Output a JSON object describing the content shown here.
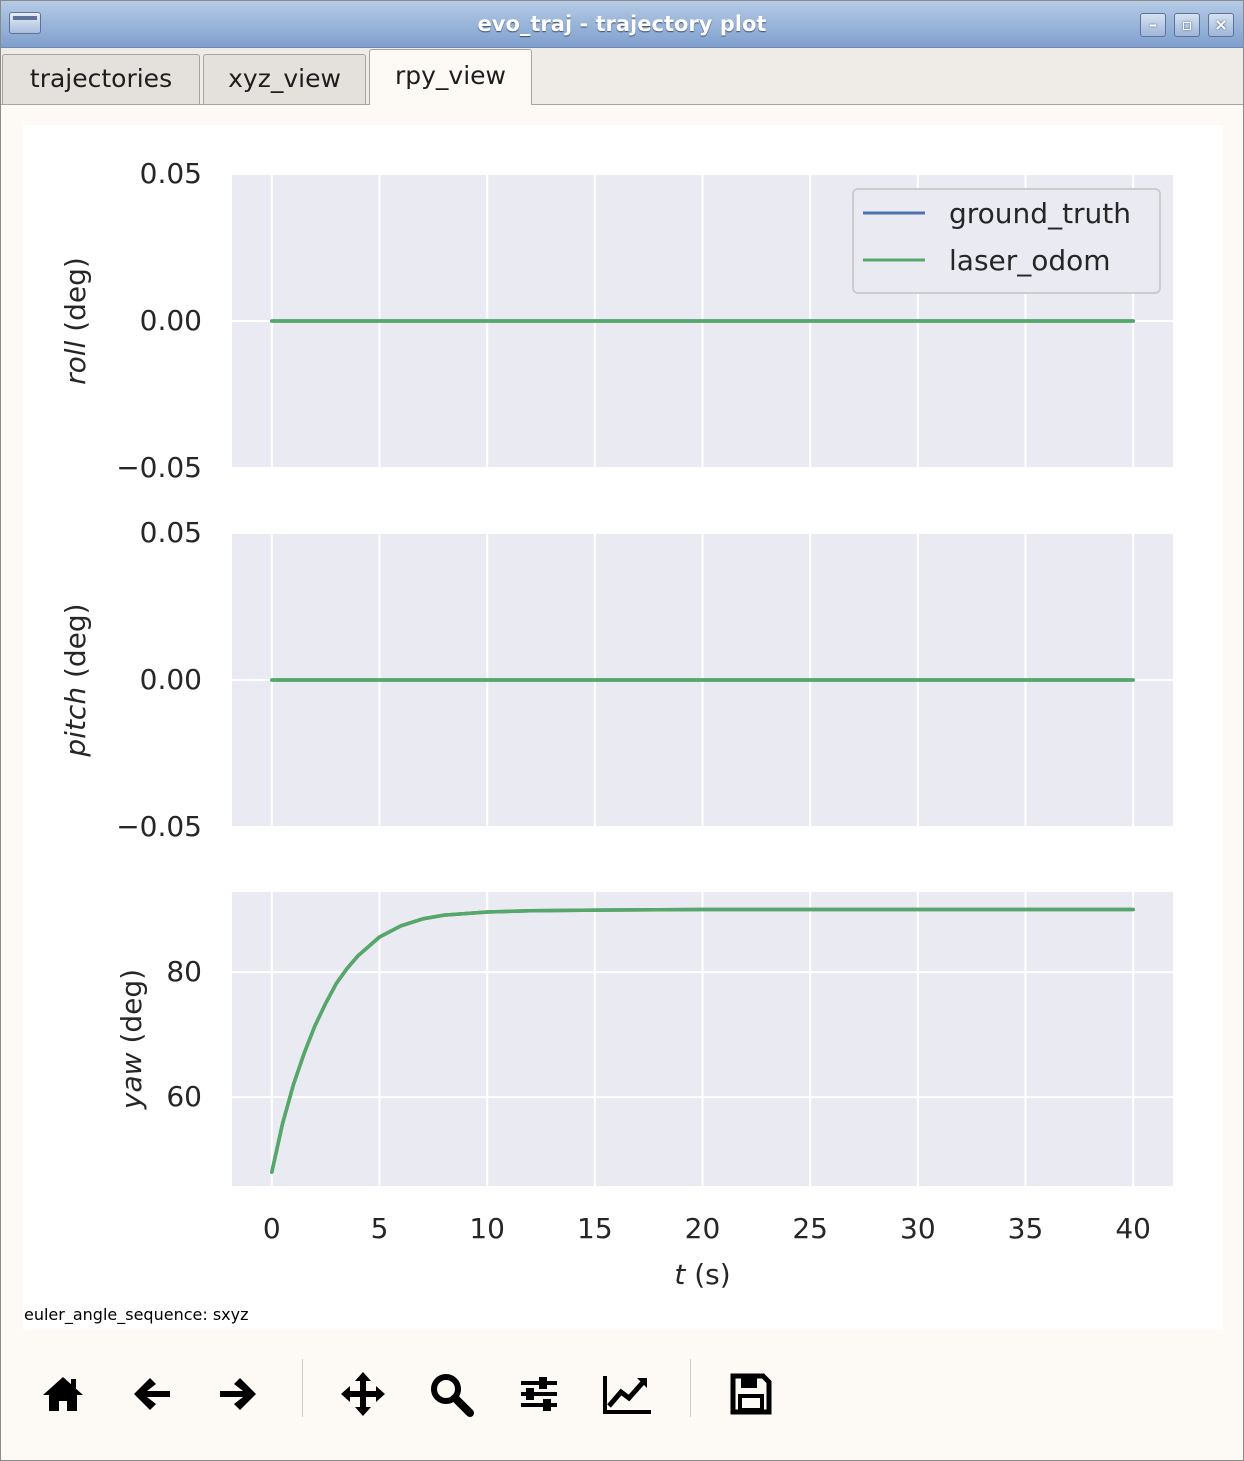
{
  "window": {
    "title": "evo_traj - trajectory plot"
  },
  "window_buttons": [
    "minimize",
    "maximize",
    "close"
  ],
  "tabs": [
    {
      "label": "trajectories",
      "active": false
    },
    {
      "label": "xyz_view",
      "active": false
    },
    {
      "label": "rpy_view",
      "active": true
    }
  ],
  "status_text": "euler_angle_sequence: sxyz",
  "toolbar": {
    "buttons": [
      {
        "name": "home-icon",
        "action": "home"
      },
      {
        "name": "arrow-left-icon",
        "action": "back"
      },
      {
        "name": "arrow-right-icon",
        "action": "forward"
      },
      {
        "name": "move-icon",
        "action": "pan"
      },
      {
        "name": "zoom-icon",
        "action": "zoom"
      },
      {
        "name": "sliders-icon",
        "action": "configure subplots"
      },
      {
        "name": "line-chart-icon",
        "action": "edit axis"
      },
      {
        "name": "save-icon",
        "action": "save"
      }
    ]
  },
  "colors": {
    "ground_truth": "#4c72b0",
    "laser_odom": "#55a868",
    "axes_bg": "#eaeaf2",
    "grid": "#ffffff"
  },
  "chart_data": [
    {
      "type": "line",
      "ylabel_var": "roll",
      "ylabel_unit": "(deg)",
      "ylim": [
        -0.05,
        0.05
      ],
      "yticks": [
        "0.05",
        "0.00",
        "−0.05"
      ],
      "ytick_values": [
        0.05,
        0.0,
        -0.05
      ],
      "xlim": [
        -1.85,
        41.85
      ],
      "legend": {
        "placement": "top-right",
        "entries": [
          "ground_truth",
          "laser_odom"
        ]
      },
      "grid": true,
      "series": [
        {
          "name": "ground_truth",
          "color": "#4c72b0",
          "x": [
            0,
            40
          ],
          "y": [
            0.0,
            0.0
          ]
        },
        {
          "name": "laser_odom",
          "color": "#55a868",
          "x": [
            0,
            40
          ],
          "y": [
            0.0,
            0.0
          ]
        }
      ]
    },
    {
      "type": "line",
      "ylabel_var": "pitch",
      "ylabel_unit": "(deg)",
      "ylim": [
        -0.05,
        0.05
      ],
      "yticks": [
        "0.05",
        "0.00",
        "−0.05"
      ],
      "ytick_values": [
        0.05,
        0.0,
        -0.05
      ],
      "xlim": [
        -1.85,
        41.85
      ],
      "grid": true,
      "series": [
        {
          "name": "ground_truth",
          "color": "#4c72b0",
          "x": [
            0,
            40
          ],
          "y": [
            0.0,
            0.0
          ]
        },
        {
          "name": "laser_odom",
          "color": "#55a868",
          "x": [
            0,
            40
          ],
          "y": [
            0.0,
            0.0
          ]
        }
      ]
    },
    {
      "type": "line",
      "ylabel_var": "yaw",
      "ylabel_unit": "(deg)",
      "ylim": [
        45.8,
        92.8
      ],
      "yticks": [
        "80",
        "60"
      ],
      "ytick_values": [
        80,
        60
      ],
      "xlim": [
        -1.85,
        41.85
      ],
      "xticks": [
        "0",
        "5",
        "10",
        "15",
        "20",
        "25",
        "30",
        "35",
        "40"
      ],
      "xtick_values": [
        0,
        5,
        10,
        15,
        20,
        25,
        30,
        35,
        40
      ],
      "xlabel_var": "t",
      "xlabel_unit": "(s)",
      "grid": true,
      "series": [
        {
          "name": "ground_truth",
          "color": "#4c72b0",
          "x": [
            0,
            0.5,
            1,
            1.5,
            2,
            2.5,
            3,
            3.5,
            4,
            5,
            6,
            7,
            8,
            10,
            12,
            15,
            20,
            25,
            30,
            35,
            40
          ],
          "y": [
            48.0,
            55.8,
            62.0,
            67.0,
            71.4,
            75.0,
            78.2,
            80.6,
            82.6,
            85.6,
            87.4,
            88.5,
            89.1,
            89.6,
            89.8,
            89.9,
            90.0,
            90.0,
            90.0,
            90.0,
            90.0
          ]
        },
        {
          "name": "laser_odom",
          "color": "#55a868",
          "x": [
            0,
            0.5,
            1,
            1.5,
            2,
            2.5,
            3,
            3.5,
            4,
            5,
            6,
            7,
            8,
            10,
            12,
            15,
            20,
            25,
            30,
            35,
            40
          ],
          "y": [
            48.0,
            55.8,
            62.0,
            67.0,
            71.4,
            75.0,
            78.2,
            80.6,
            82.6,
            85.6,
            87.4,
            88.5,
            89.1,
            89.6,
            89.8,
            89.9,
            90.0,
            90.0,
            90.0,
            90.0,
            90.0
          ]
        }
      ]
    }
  ]
}
